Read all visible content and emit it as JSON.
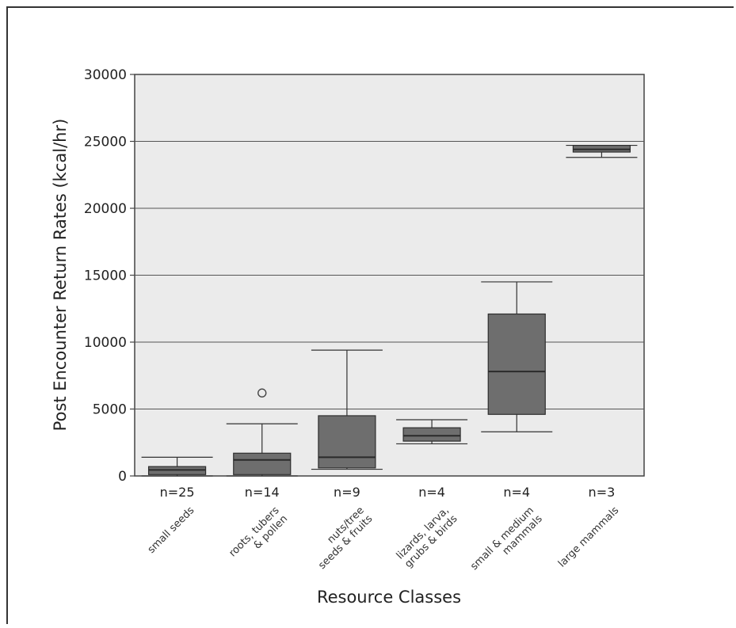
{
  "chart_data": {
    "type": "box",
    "xlabel": "Resource Classes",
    "ylabel": "Post Encounter Return Rates (kcal/hr)",
    "ylim": [
      0,
      30000
    ],
    "yticks": [
      "0",
      "5000",
      "10000",
      "15000",
      "20000",
      "25000",
      "30000"
    ],
    "grid": true,
    "colors": {
      "box_fill": "#6e6e6e",
      "plot_bg": "#ebebeb",
      "median": "#2a2a2a"
    },
    "categories": [
      {
        "label_lines": [
          "small seeds"
        ],
        "n_label": "n=25",
        "min": 0,
        "q1": 100,
        "median": 450,
        "q3": 700,
        "max": 1400,
        "outliers": []
      },
      {
        "label_lines": [
          "roots, tubers",
          "& pollen"
        ],
        "n_label": "n=14",
        "min": 0,
        "q1": 100,
        "median": 1200,
        "q3": 1700,
        "max": 3900,
        "outliers": [
          6200
        ]
      },
      {
        "label_lines": [
          "nuts/tree",
          "seeds & fruits"
        ],
        "n_label": "n=9",
        "min": 500,
        "q1": 600,
        "median": 1400,
        "q3": 4500,
        "max": 9400,
        "outliers": []
      },
      {
        "label_lines": [
          "lizards, larva,",
          "grubs & birds"
        ],
        "n_label": "n=4",
        "min": 2400,
        "q1": 2600,
        "median": 3000,
        "q3": 3600,
        "max": 4200,
        "outliers": []
      },
      {
        "label_lines": [
          "small & medium",
          "mammals"
        ],
        "n_label": "n=4",
        "min": 3300,
        "q1": 4600,
        "median": 7800,
        "q3": 12100,
        "max": 14500,
        "outliers": []
      },
      {
        "label_lines": [
          "large mammals"
        ],
        "n_label": "n=3",
        "min": 23800,
        "q1": 24200,
        "median": 24400,
        "q3": 24700,
        "max": 24700,
        "outliers": []
      }
    ]
  }
}
